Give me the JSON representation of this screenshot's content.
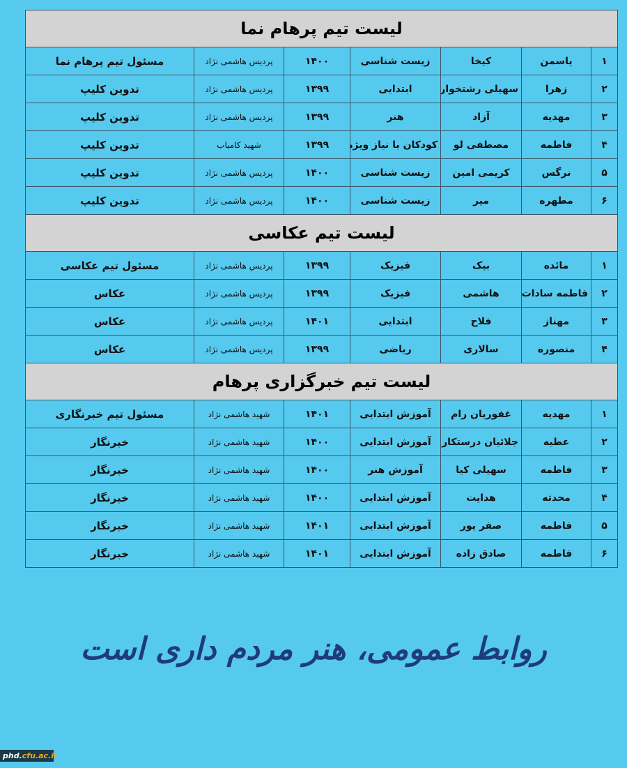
{
  "sections": [
    {
      "title": "لیست تیم پرهام نما",
      "rows": [
        [
          "۱",
          "یاسمن",
          "کیخا",
          "زیست شناسی",
          "۱۴۰۰",
          "پردیس هاشمی نژاد",
          "مسئول تیم پرهام نما"
        ],
        [
          "۲",
          "زهرا",
          "سهیلی رشتخوار",
          "ابتدایی",
          "۱۳۹۹",
          "پردیس هاشمی نژاد",
          "تدوین کلیپ"
        ],
        [
          "۳",
          "مهدیه",
          "آزاد",
          "هنر",
          "۱۳۹۹",
          "پردیس هاشمی نژاد",
          "تدوین کلیپ"
        ],
        [
          "۴",
          "فاطمه",
          "مصطفی لو",
          "کودکان با نیاز ویژه",
          "۱۳۹۹",
          "شهید کامیاب",
          "تدوین کلیپ"
        ],
        [
          "۵",
          "نرگس",
          "کریمی امین",
          "زیست شناسی",
          "۱۴۰۰",
          "پردیس هاشمی نژاد",
          "تدوین کلیپ"
        ],
        [
          "۶",
          "مطهره",
          "میر",
          "زیست شناسی",
          "۱۴۰۰",
          "پردیس هاشمی نژاد",
          "تدوین کلیپ"
        ]
      ]
    },
    {
      "title": "لیست تیم عکاسی",
      "rows": [
        [
          "۱",
          "مائده",
          "بیک",
          "فیزیک",
          "۱۳۹۹",
          "پردیس هاشمی نژاد",
          "مسئول تیم عکاسی"
        ],
        [
          "۲",
          "فاطمه سادات",
          "هاشمی",
          "فیزیک",
          "۱۳۹۹",
          "پردیس هاشمی نژاد",
          "عکاس"
        ],
        [
          "۳",
          "مهناز",
          "فلاح",
          "ابتدایی",
          "۱۴۰۱",
          "پردیس هاشمی نژاد",
          "عکاس"
        ],
        [
          "۴",
          "منصوره",
          "سالاری",
          "ریاضی",
          "۱۳۹۹",
          "پردیس هاشمی نژاد",
          "عکاس"
        ]
      ]
    },
    {
      "title": "لیست تیم خبرگزاری پرهام",
      "rows": [
        [
          "۱",
          "مهدیه",
          "غفوریان رام",
          "آموزش ابتدایی",
          "۱۴۰۱",
          "شهید هاشمی نژاد",
          "مسئول تیم خبرنگاری"
        ],
        [
          "۲",
          "عطیه",
          "جلائیان درستکار",
          "آموزش ابتدایی",
          "۱۴۰۰",
          "شهید هاشمی نژاد",
          "خبرنگار"
        ],
        [
          "۳",
          "فاطمه",
          "سهیلی کیا",
          "آموزش هنر",
          "۱۴۰۰",
          "شهید هاشمی نژاد",
          "خبرنگار"
        ],
        [
          "۴",
          "محدثه",
          "هدایت",
          "آموزش ابتدایی",
          "۱۴۰۰",
          "شهید هاشمی نژاد",
          "خبرنگار"
        ],
        [
          "۵",
          "فاطمه",
          "صفر پور",
          "آموزش ابتدایی",
          "۱۴۰۱",
          "شهید هاشمی نژاد",
          "خبرنگار"
        ],
        [
          "۶",
          "فاطمه",
          "صادق زاده",
          "آموزش ابتدایی",
          "۱۴۰۱",
          "شهید هاشمی نژاد",
          "خبرنگار"
        ]
      ]
    }
  ],
  "slogan": "روابط عمومی، هنر مردم داری است",
  "watermark": {
    "part1": "phd.",
    "part2": "cfu.ac.ir"
  },
  "colors": {
    "background": "#56c9ee",
    "title_row": "#d3d3d3",
    "slogan": "#1e3b7e"
  }
}
